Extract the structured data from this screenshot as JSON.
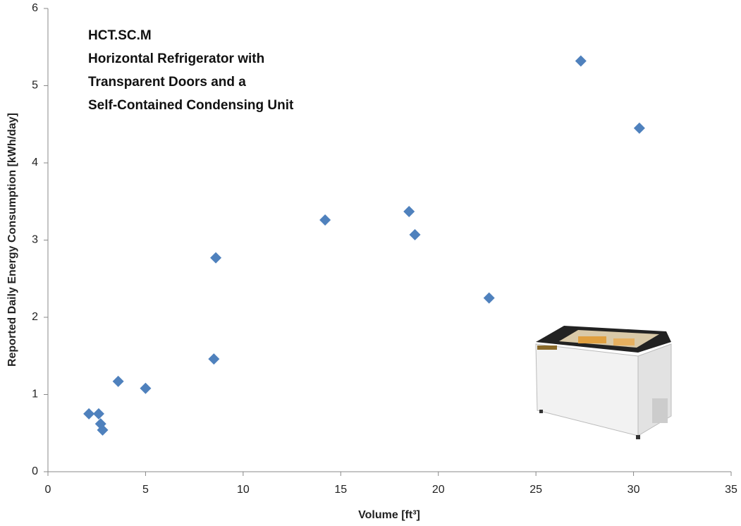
{
  "chart_data": {
    "type": "scatter",
    "annotation": [
      "HCT.SC.M",
      "Horizontal Refrigerator with",
      "Transparent Doors  and a",
      "Self-Contained Condensing Unit"
    ],
    "x_label": "Volume [ft³]",
    "y_label": "Reported Daily Energy Consumption  [kWh/day]",
    "xlim": [
      0,
      35
    ],
    "xticks": [
      0,
      5,
      10,
      15,
      20,
      25,
      30,
      35
    ],
    "ylim": [
      0,
      6
    ],
    "yticks": [
      0,
      1,
      2,
      3,
      4,
      5,
      6
    ],
    "grid": false,
    "series": [
      {
        "color": "#4f81bd",
        "x": [
          2.1,
          2.6,
          2.7,
          2.8,
          3.6,
          5.0,
          8.5,
          8.6,
          14.2,
          18.5,
          18.8,
          22.6,
          27.3,
          30.3
        ],
        "values": [
          0.75,
          0.75,
          0.62,
          0.54,
          1.17,
          1.08,
          1.46,
          2.77,
          3.26,
          3.37,
          3.07,
          2.25,
          5.32,
          4.45
        ]
      }
    ]
  }
}
